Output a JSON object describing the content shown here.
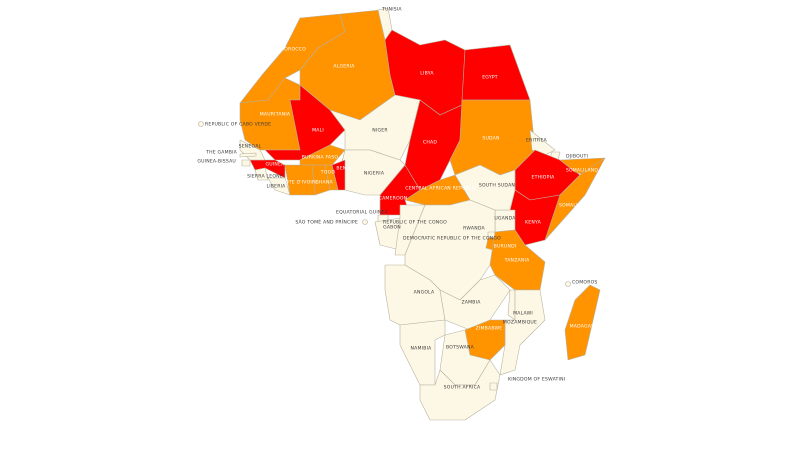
{
  "countries": [
    {
      "name": "MOROCCO",
      "color": "#ff9300"
    },
    {
      "name": "ALGERIA",
      "color": "#ff9300"
    },
    {
      "name": "TUNISIA",
      "color": "#fdf8e6"
    },
    {
      "name": "LIBYA",
      "color": "#ff0000"
    },
    {
      "name": "EGYPT",
      "color": "#ff0000"
    },
    {
      "name": "MAURITANIA",
      "color": "#ff9300"
    },
    {
      "name": "MALI",
      "color": "#ff0000"
    },
    {
      "name": "NIGER",
      "color": "#fdf8e6"
    },
    {
      "name": "CHAD",
      "color": "#ff0000"
    },
    {
      "name": "SUDAN",
      "color": "#ff9300"
    },
    {
      "name": "ERITREA",
      "color": "#fdf8e6"
    },
    {
      "name": "DJIBOUTI",
      "color": "#fdf8e6"
    },
    {
      "name": "ETHIOPIA",
      "color": "#ff0000"
    },
    {
      "name": "SOMALILAND",
      "color": "#ff9300"
    },
    {
      "name": "SOMALIA",
      "color": "#ff9300"
    },
    {
      "name": "KENYA",
      "color": "#ff0000"
    },
    {
      "name": "UGANDA",
      "color": "#fdf8e6"
    },
    {
      "name": "SOUTH SUDAN",
      "color": "#fdf8e6"
    },
    {
      "name": "CENTRAL AFRICAN REPUBLIC",
      "color": "#ff9300"
    },
    {
      "name": "CAMEROON",
      "color": "#ff0000"
    },
    {
      "name": "NIGERIA",
      "color": "#fdf8e6"
    },
    {
      "name": "BENIN",
      "color": "#ff0000"
    },
    {
      "name": "TOGO",
      "color": "#ff9300"
    },
    {
      "name": "GHANA",
      "color": "#ff9300"
    },
    {
      "name": "BURKINA FASO",
      "color": "#ff9300"
    },
    {
      "name": "CÔTE D'IVOIRE",
      "color": "#ff9300"
    },
    {
      "name": "GUINEA",
      "color": "#ff0000"
    },
    {
      "name": "SIERRA LEONE",
      "color": "#fdf8e6"
    },
    {
      "name": "LIBERIA",
      "color": "#fdf8e6"
    },
    {
      "name": "SENEGAL",
      "color": "#fdf8e6"
    },
    {
      "name": "GUINEA-BISSAU",
      "color": "#fdf8e6"
    },
    {
      "name": "EQUATORIAL GUINEA",
      "color": "#fdf8e6"
    },
    {
      "name": "GABON",
      "color": "#fdf8e6"
    },
    {
      "name": "REPUBLIC OF THE CONGO",
      "color": "#fdf8e6"
    },
    {
      "name": "DEMOCRATIC REPUBLIC OF THE CONGO",
      "color": "#fdf8e6"
    },
    {
      "name": "RWANDA",
      "color": "#fdf8e6"
    },
    {
      "name": "BURUNDI",
      "color": "#ff9300"
    },
    {
      "name": "TANZANIA",
      "color": "#ff9300"
    },
    {
      "name": "ANGOLA",
      "color": "#fdf8e6"
    },
    {
      "name": "ZAMBIA",
      "color": "#fdf8e6"
    },
    {
      "name": "MALAWI",
      "color": "#fdf8e6"
    },
    {
      "name": "MOZAMBIQUE",
      "color": "#fdf8e6"
    },
    {
      "name": "ZIMBABWE",
      "color": "#ff9300"
    },
    {
      "name": "NAMIBIA",
      "color": "#fdf8e6"
    },
    {
      "name": "BOTSWANA",
      "color": "#fdf8e6"
    },
    {
      "name": "SOUTH AFRICA",
      "color": "#fdf8e6"
    },
    {
      "name": "KINGDOM OF ESWATINI",
      "color": "#fdf8e6"
    },
    {
      "name": "MADAGASCAR",
      "color": "#ff9300"
    },
    {
      "name": "COMOROS",
      "color": "#fdf8e6"
    },
    {
      "name": "REPUBLIC OF CABO VERDE",
      "color": "#fdf8e6"
    },
    {
      "name": "THE GAMBIA",
      "color": "#fdf8e6"
    },
    {
      "name": "SÃO TOMÉ AND PRÍNCIPE",
      "color": "#fdf8e6"
    }
  ]
}
